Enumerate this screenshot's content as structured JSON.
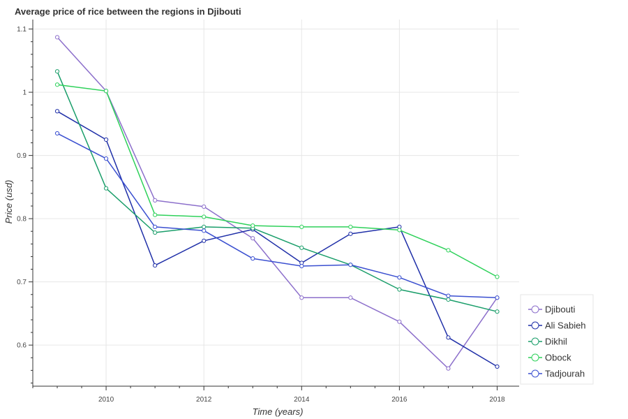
{
  "chart_data": {
    "type": "line",
    "title": "Average price of rice between the regions in Djibouti",
    "xlabel": "Time (years)",
    "ylabel": "Price (usd)",
    "xlim": [
      2008.5,
      2018.45
    ],
    "ylim": [
      0.535,
      1.115
    ],
    "xticks": [
      2010,
      2012,
      2014,
      2016,
      2018
    ],
    "yticks": [
      0.6,
      0.7,
      0.8,
      0.9,
      1,
      1.1
    ],
    "ytick_labels": [
      "0.6",
      "0.7",
      "0.8",
      "0.9",
      "1",
      "1.1"
    ],
    "grid": true,
    "legend_position": "bottom-right",
    "x": [
      2009,
      2010,
      2011,
      2012,
      2013,
      2014,
      2015,
      2016,
      2017,
      2018
    ],
    "series": [
      {
        "name": "Djibouti",
        "color": "#8c6fcb",
        "values": [
          1.087,
          1.002,
          0.829,
          0.819,
          0.769,
          0.675,
          0.675,
          0.637,
          0.563,
          0.675
        ]
      },
      {
        "name": "Ali Sabieh",
        "color": "#1f2fa8",
        "values": [
          0.97,
          0.925,
          0.726,
          0.765,
          0.783,
          0.73,
          0.776,
          0.787,
          0.612,
          0.566
        ]
      },
      {
        "name": "Dikhil",
        "color": "#1a9e6a",
        "values": [
          1.033,
          0.848,
          0.778,
          0.787,
          0.785,
          0.754,
          0.727,
          0.688,
          0.672,
          0.653
        ]
      },
      {
        "name": "Obock",
        "color": "#2ed15a",
        "values": [
          1.012,
          1.002,
          0.806,
          0.803,
          0.789,
          0.787,
          0.787,
          0.782,
          0.75,
          0.708
        ]
      },
      {
        "name": "Tadjourah",
        "color": "#3a4fd0",
        "values": [
          0.935,
          0.895,
          0.787,
          0.781,
          0.737,
          0.725,
          0.727,
          0.707,
          0.678,
          0.675
        ]
      }
    ]
  }
}
